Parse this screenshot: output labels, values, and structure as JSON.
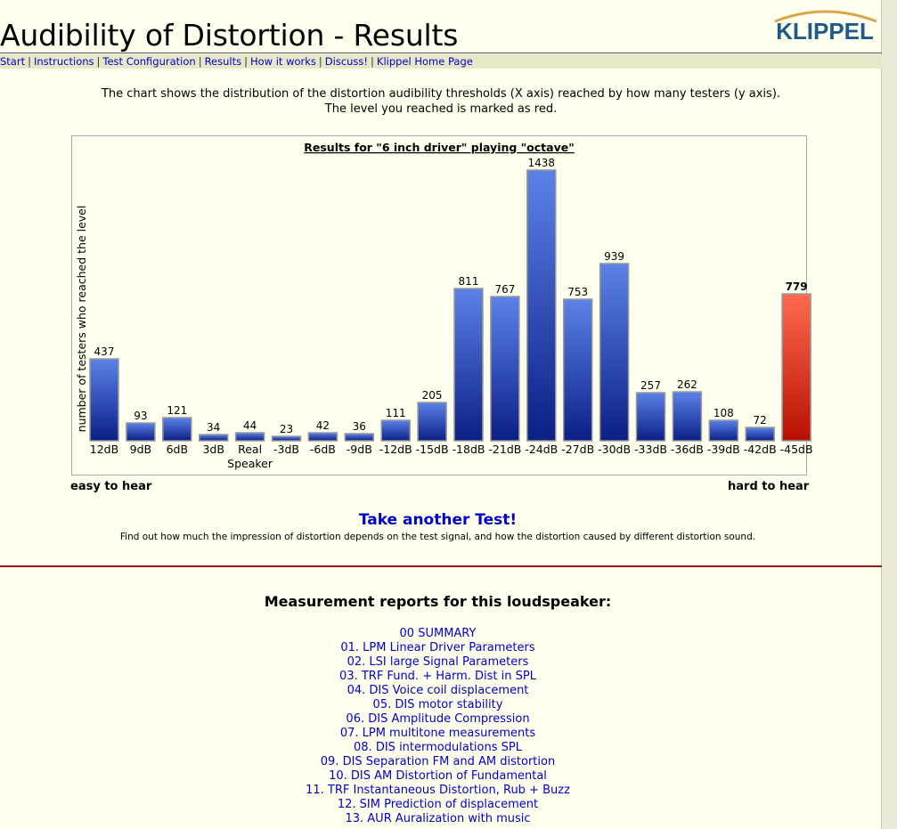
{
  "header": {
    "title": "Audibility of Distortion - Results",
    "logo_text": "KLIPPEL"
  },
  "nav": {
    "items": [
      "Start",
      "Instructions",
      "Test Configuration",
      "Results",
      "How it works",
      "Discuss!",
      "Klippel Home Page"
    ]
  },
  "intro": {
    "line1": "The chart shows the distribution of the distortion audibility thresholds (X axis) reached by how many testers (y axis).",
    "line2": "The level you reached is marked as red."
  },
  "chart_data": {
    "type": "bar",
    "title": "Results for \"6 inch driver\" playing \"octave\"",
    "ylabel": "number of testers who reached the level",
    "xlabel": "",
    "categories": [
      "12dB",
      "9dB",
      "6dB",
      "3dB",
      "Real Speaker",
      "-3dB",
      "-6dB",
      "-9dB",
      "-12dB",
      "-15dB",
      "-18dB",
      "-21dB",
      "-24dB",
      "-27dB",
      "-30dB",
      "-33dB",
      "-36dB",
      "-39dB",
      "-42dB",
      "-45dB"
    ],
    "values": [
      437,
      93,
      121,
      34,
      44,
      23,
      42,
      36,
      111,
      205,
      811,
      767,
      1438,
      753,
      939,
      257,
      262,
      108,
      72,
      779
    ],
    "highlight_index": 19,
    "ylim": [
      0,
      1438
    ],
    "colors": {
      "normal": "#2244bb",
      "highlight": "#dd2211"
    }
  },
  "chart_footer": {
    "left": "easy to hear",
    "right": "hard to hear"
  },
  "take_test": {
    "link": "Take another Test!",
    "description": "Find out how much the impression of distortion depends on the test signal, and how the distortion caused by different distortion sound."
  },
  "reports": {
    "title": "Measurement reports for this loudspeaker:",
    "items": [
      "00 SUMMARY",
      "01. LPM Linear Driver Parameters",
      "02. LSI large Signal Parameters",
      "03. TRF Fund. + Harm. Dist in SPL",
      "04. DIS Voice coil displacement",
      "05. DIS motor stability",
      "06. DIS Amplitude Compression",
      "07. LPM multitone measurements",
      "08. DIS intermodulations SPL",
      "09. DIS Separation FM and AM distortion",
      "10. DIS AM Distortion of Fundamental",
      "11. TRF Instantaneous Distortion, Rub + Buzz",
      "12. SIM Prediction of displacement",
      "13. AUR Auralization with music"
    ]
  }
}
